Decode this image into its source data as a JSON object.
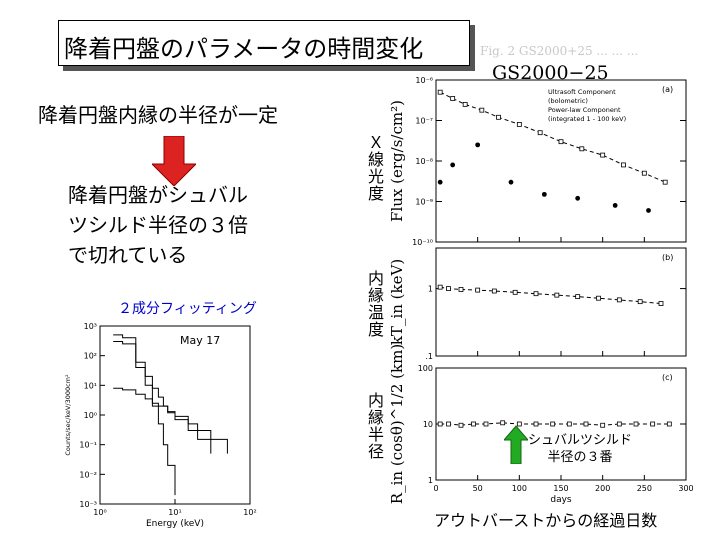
{
  "slide": {
    "title": "降着円盤のパラメータの時間変化",
    "statement": "降着円盤内縁の半径が一定",
    "conclusion_lines": [
      "降着円盤がシュバル",
      "ツシルド半径の３倍",
      "で切れている"
    ],
    "fit_label": "２成分フィッティング",
    "source_label": "GS2000−25",
    "side_labels": {
      "flux": "Ｘ線光度",
      "temperature": "内縁温度",
      "radius": "内縁半径"
    },
    "arrow_annotation_lines": [
      "シュバルツシルド",
      "半径の３番"
    ],
    "bottom_caption": "アウトバーストからの経過日数",
    "accent_color": "#dd2222",
    "annotation_arrow_color": "#22aa22",
    "fit_label_color": "#0000cc"
  },
  "chart_data": [
    {
      "type": "scatter",
      "ylabel": "Flux (erg/s/cm²)",
      "yscale": "log",
      "ylim": [
        1e-10,
        1e-06
      ],
      "yticks": [
        "10⁻⁶",
        "10⁻⁷",
        "10⁻⁸",
        "10⁻⁹",
        "10⁻¹⁰"
      ],
      "xlim": [
        0,
        300
      ],
      "panel_tag": "(a)",
      "legend_lines": [
        "Ultrasoft Component",
        "(bolometric)",
        "Power-law Component",
        "(integrated 1 - 100 keV)"
      ],
      "legend_position": "top-right",
      "series": [
        {
          "name": "Ultrasoft Component",
          "marker": "open-square",
          "x": [
            5,
            20,
            35,
            55,
            75,
            100,
            125,
            150,
            175,
            200,
            225,
            250,
            275
          ],
          "y": [
            5e-07,
            3.5e-07,
            2.5e-07,
            1.8e-07,
            1.2e-07,
            8e-08,
            5e-08,
            3e-08,
            2e-08,
            1.4e-08,
            8e-09,
            5e-09,
            3e-09
          ]
        },
        {
          "name": "Power-law Component",
          "marker": "filled-dot",
          "x": [
            5,
            20,
            50,
            90,
            130,
            170,
            215,
            255
          ],
          "y": [
            3e-09,
            8e-09,
            2.5e-08,
            3e-09,
            1.5e-09,
            1.2e-09,
            8e-10,
            6e-10
          ]
        }
      ]
    },
    {
      "type": "scatter",
      "ylabel": "kT_in (keV)",
      "yscale": "log",
      "ylim": [
        0.1,
        4
      ],
      "yticks": [
        "1",
        ".1"
      ],
      "xlim": [
        0,
        300
      ],
      "panel_tag": "(b)",
      "series": [
        {
          "marker": "open-square",
          "x": [
            5,
            15,
            30,
            50,
            70,
            95,
            120,
            145,
            170,
            195,
            220,
            245,
            270
          ],
          "y": [
            1.05,
            1.0,
            0.97,
            0.95,
            0.92,
            0.88,
            0.84,
            0.8,
            0.76,
            0.72,
            0.68,
            0.64,
            0.6
          ]
        }
      ]
    },
    {
      "type": "scatter",
      "ylabel": "R_in (cosθ)^1/2 (km)",
      "yscale": "log",
      "ylim": [
        1,
        100
      ],
      "yticks": [
        "100",
        "10",
        "1"
      ],
      "xlabel": "days",
      "xticks": [
        "0",
        "50",
        "100",
        "150",
        "200",
        "250",
        "300"
      ],
      "xlim": [
        0,
        300
      ],
      "panel_tag": "(c)",
      "series": [
        {
          "marker": "open-square",
          "x": [
            5,
            15,
            30,
            45,
            60,
            80,
            100,
            120,
            140,
            160,
            180,
            200,
            220,
            240,
            260,
            280
          ],
          "y": [
            10,
            10,
            9.5,
            10,
            10,
            10.5,
            10,
            10,
            10,
            10,
            10,
            9.5,
            10,
            10,
            10,
            10
          ]
        }
      ]
    },
    {
      "type": "line",
      "xlabel": "Energy (keV)",
      "ylabel": "Counts/sec/keV/3000cm²",
      "xscale": "log",
      "yscale": "log",
      "xlim": [
        1,
        100
      ],
      "ylim": [
        0.001,
        1000
      ],
      "yticks": [
        "10³",
        "10²",
        "10¹",
        "10⁰",
        "10⁻¹",
        "10⁻²",
        "10⁻³"
      ],
      "xticks": [
        "10⁰",
        "10¹",
        "10²"
      ],
      "annotation": "May 17",
      "series": [
        {
          "x": [
            1.5,
            2,
            3,
            4,
            5,
            6,
            7,
            8,
            10,
            15,
            20,
            30
          ],
          "y": [
            500,
            400,
            60,
            20,
            8,
            4,
            2,
            1.2,
            0.7,
            0.3,
            0.15,
            0.05
          ]
        },
        {
          "x": [
            1.5,
            2,
            3,
            4,
            5,
            6,
            7,
            8,
            10
          ],
          "y": [
            300,
            250,
            40,
            10,
            2,
            0.5,
            0.1,
            0.02,
            0.002
          ]
        },
        {
          "x": [
            1.5,
            2,
            3,
            4,
            5,
            6,
            8,
            10,
            15,
            20,
            30,
            50
          ],
          "y": [
            8,
            7,
            5,
            3.5,
            2.5,
            2,
            1.3,
            0.9,
            0.5,
            0.3,
            0.15,
            0.05
          ]
        }
      ]
    }
  ]
}
